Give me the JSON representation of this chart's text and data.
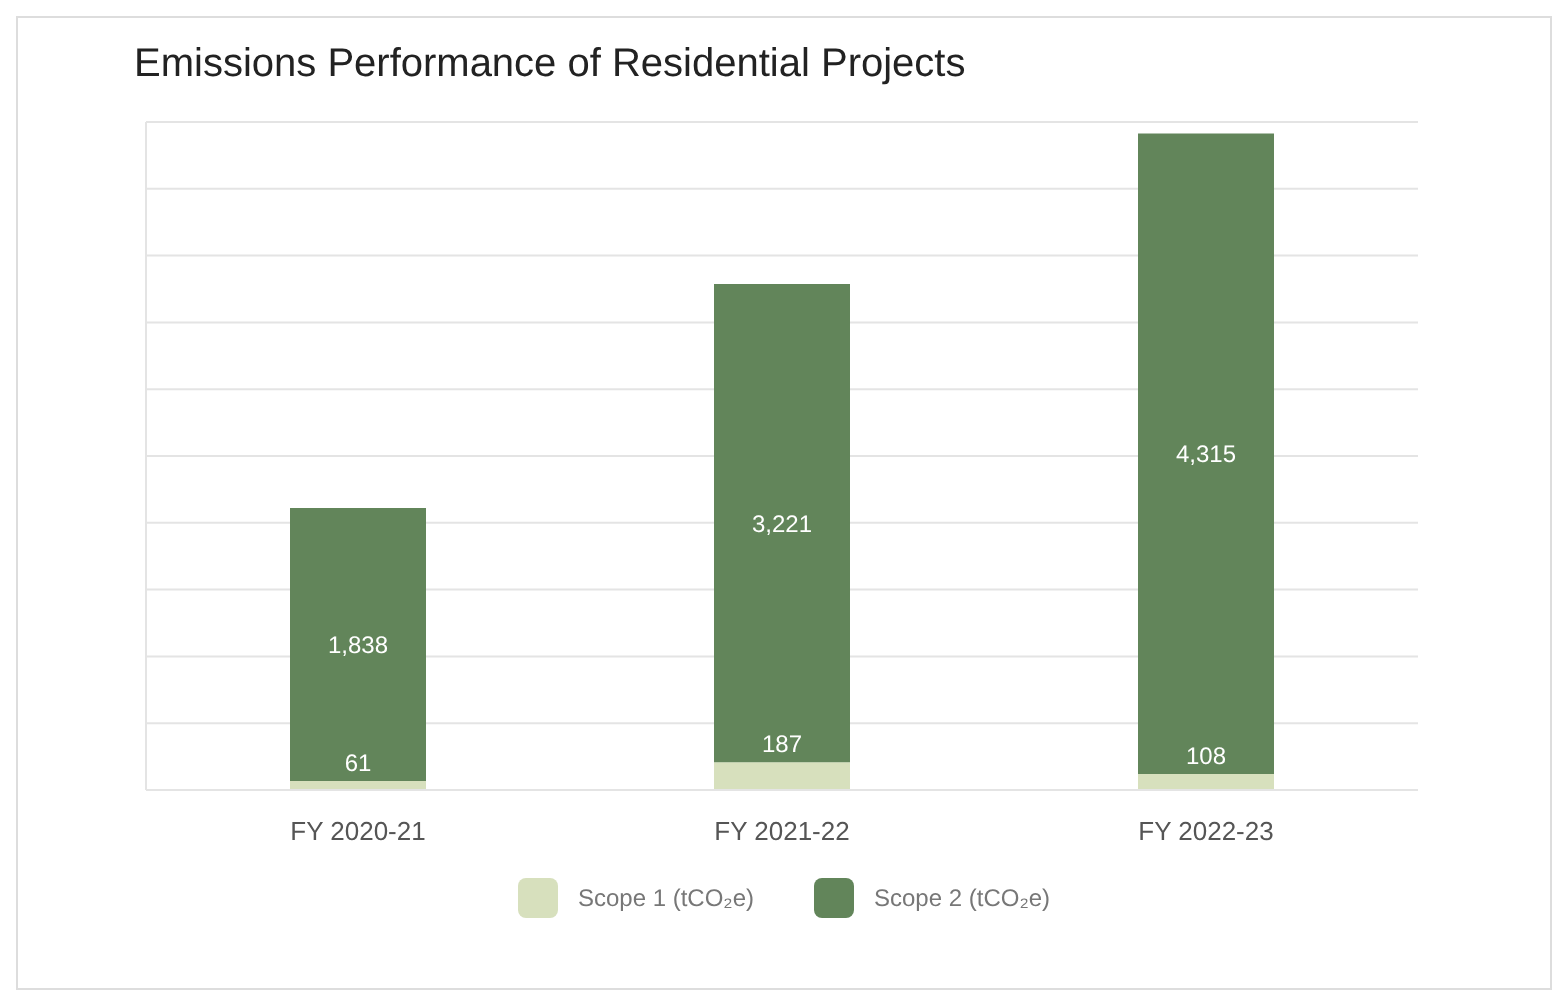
{
  "chart_data": {
    "type": "bar",
    "title": "Emissions Performance of Residential Projects",
    "categories": [
      "FY 2020-21",
      "FY 2021-22",
      "FY 2022-23"
    ],
    "series": [
      {
        "name": "Scope 1 (tCO₂e)",
        "color": "#d7e0bd",
        "values": [
          61,
          187,
          108
        ],
        "value_labels": [
          "61",
          "187",
          "108"
        ]
      },
      {
        "name": "Scope 2 (tCO₂e)",
        "color": "#62855a",
        "values": [
          1838,
          3221,
          4315
        ],
        "value_labels": [
          "1,838",
          "3,221",
          "4,315"
        ]
      }
    ],
    "stacked": true,
    "tick_labels": "x",
    "grid": "y",
    "legend": "bottom"
  }
}
